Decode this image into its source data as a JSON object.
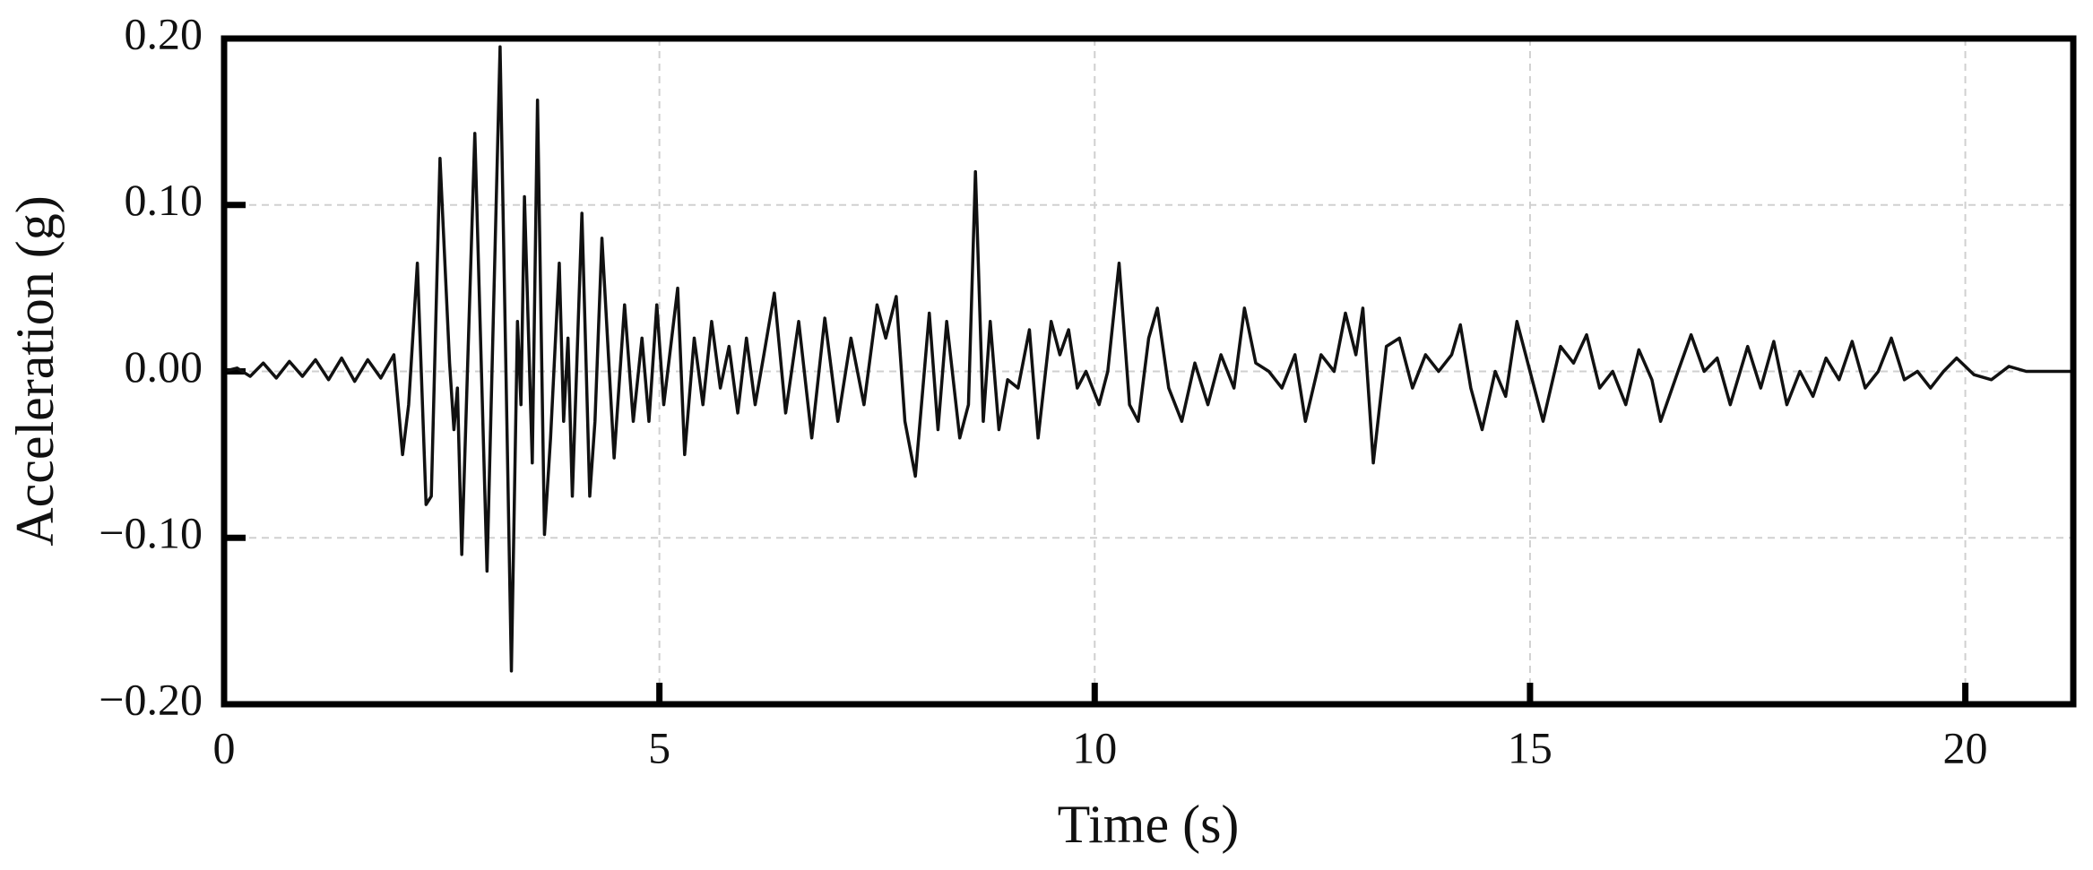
{
  "chart_data": {
    "type": "line",
    "xlabel": "Time (s)",
    "ylabel": "Acceleration (g)",
    "color": "#111111",
    "grid": true,
    "xlim": [
      0,
      21.24
    ],
    "ylim": [
      -0.2,
      0.2
    ],
    "xticks": [
      0,
      5,
      10,
      15,
      20
    ],
    "yticks": [
      {
        "value": -0.2,
        "label": "−0.20"
      },
      {
        "value": -0.1,
        "label": "−0.10"
      },
      {
        "value": 0,
        "label": "0.00"
      },
      {
        "value": 0.1,
        "label": "0.10"
      },
      {
        "value": 0.2,
        "label": "0.20"
      }
    ],
    "x": [
      0,
      0.15,
      0.3,
      0.45,
      0.6,
      0.75,
      0.9,
      1.05,
      1.2,
      1.35,
      1.5,
      1.65,
      1.8,
      1.95,
      2.05,
      2.12,
      2.22,
      2.32,
      2.38,
      2.48,
      2.59,
      2.64,
      2.68,
      2.73,
      2.88,
      3.02,
      3.17,
      3.3,
      3.37,
      3.41,
      3.45,
      3.54,
      3.6,
      3.68,
      3.75,
      3.85,
      3.9,
      3.95,
      4.0,
      4.11,
      4.2,
      4.26,
      4.34,
      4.48,
      4.6,
      4.7,
      4.8,
      4.88,
      4.97,
      5.05,
      5.21,
      5.29,
      5.4,
      5.5,
      5.6,
      5.7,
      5.8,
      5.9,
      6.0,
      6.1,
      6.2,
      6.32,
      6.45,
      6.6,
      6.75,
      6.9,
      7.05,
      7.2,
      7.35,
      7.5,
      7.6,
      7.72,
      7.82,
      7.94,
      8.1,
      8.2,
      8.3,
      8.45,
      8.55,
      8.63,
      8.72,
      8.8,
      8.9,
      9.0,
      9.12,
      9.25,
      9.35,
      9.5,
      9.6,
      9.7,
      9.8,
      9.9,
      10.05,
      10.15,
      10.28,
      10.4,
      10.5,
      10.62,
      10.72,
      10.85,
      11.0,
      11.15,
      11.3,
      11.45,
      11.6,
      11.72,
      11.85,
      12.0,
      12.15,
      12.3,
      12.42,
      12.6,
      12.75,
      12.88,
      13.0,
      13.08,
      13.2,
      13.35,
      13.5,
      13.65,
      13.8,
      13.95,
      14.1,
      14.2,
      14.32,
      14.45,
      14.6,
      14.72,
      14.85,
      15.0,
      15.15,
      15.35,
      15.5,
      15.65,
      15.8,
      15.95,
      16.1,
      16.25,
      16.4,
      16.5,
      16.7,
      16.85,
      17.0,
      17.15,
      17.3,
      17.5,
      17.65,
      17.8,
      17.95,
      18.1,
      18.25,
      18.4,
      18.55,
      18.7,
      18.85,
      19.0,
      19.15,
      19.3,
      19.45,
      19.6,
      19.75,
      19.9,
      20.1,
      20.3,
      20.5,
      20.7,
      21.0,
      21.24
    ],
    "values": [
      0,
      0.002,
      -0.003,
      0.005,
      -0.004,
      0.006,
      -0.003,
      0.007,
      -0.005,
      0.008,
      -0.006,
      0.007,
      -0.004,
      0.01,
      -0.05,
      -0.02,
      0.065,
      -0.08,
      -0.075,
      0.128,
      0.005,
      -0.035,
      -0.01,
      -0.11,
      0.143,
      -0.12,
      0.195,
      -0.18,
      0.03,
      -0.02,
      0.105,
      -0.055,
      0.163,
      -0.098,
      -0.04,
      0.065,
      -0.03,
      0.02,
      -0.075,
      0.095,
      -0.075,
      -0.03,
      0.08,
      -0.052,
      0.04,
      -0.03,
      0.02,
      -0.03,
      0.04,
      -0.02,
      0.05,
      -0.05,
      0.02,
      -0.02,
      0.03,
      -0.01,
      0.015,
      -0.025,
      0.02,
      -0.02,
      0.01,
      0.047,
      -0.025,
      0.03,
      -0.04,
      0.032,
      -0.03,
      0.02,
      -0.02,
      0.04,
      0.02,
      0.045,
      -0.03,
      -0.063,
      0.035,
      -0.035,
      0.03,
      -0.04,
      -0.02,
      0.12,
      -0.03,
      0.03,
      -0.035,
      -0.005,
      -0.01,
      0.025,
      -0.04,
      0.03,
      0.01,
      0.025,
      -0.01,
      0,
      -0.02,
      0,
      0.065,
      -0.02,
      -0.03,
      0.02,
      0.038,
      -0.01,
      -0.03,
      0.005,
      -0.02,
      0.01,
      -0.01,
      0.038,
      0.005,
      0,
      -0.01,
      0.01,
      -0.03,
      0.01,
      0,
      0.035,
      0.01,
      0.038,
      -0.055,
      0.015,
      0.02,
      -0.01,
      0.01,
      0,
      0.01,
      0.028,
      -0.01,
      -0.035,
      0,
      -0.015,
      0.03,
      0,
      -0.03,
      0.015,
      0.005,
      0.022,
      -0.01,
      0,
      -0.02,
      0.013,
      -0.005,
      -0.03,
      0,
      0.022,
      0,
      0.008,
      -0.02,
      0.015,
      -0.01,
      0.018,
      -0.02,
      0,
      -0.015,
      0.008,
      -0.005,
      0.018,
      -0.01,
      0,
      0.02,
      -0.005,
      0,
      -0.01,
      0,
      0.008,
      -0.002,
      -0.005,
      0.003,
      0,
      0,
      0
    ]
  }
}
